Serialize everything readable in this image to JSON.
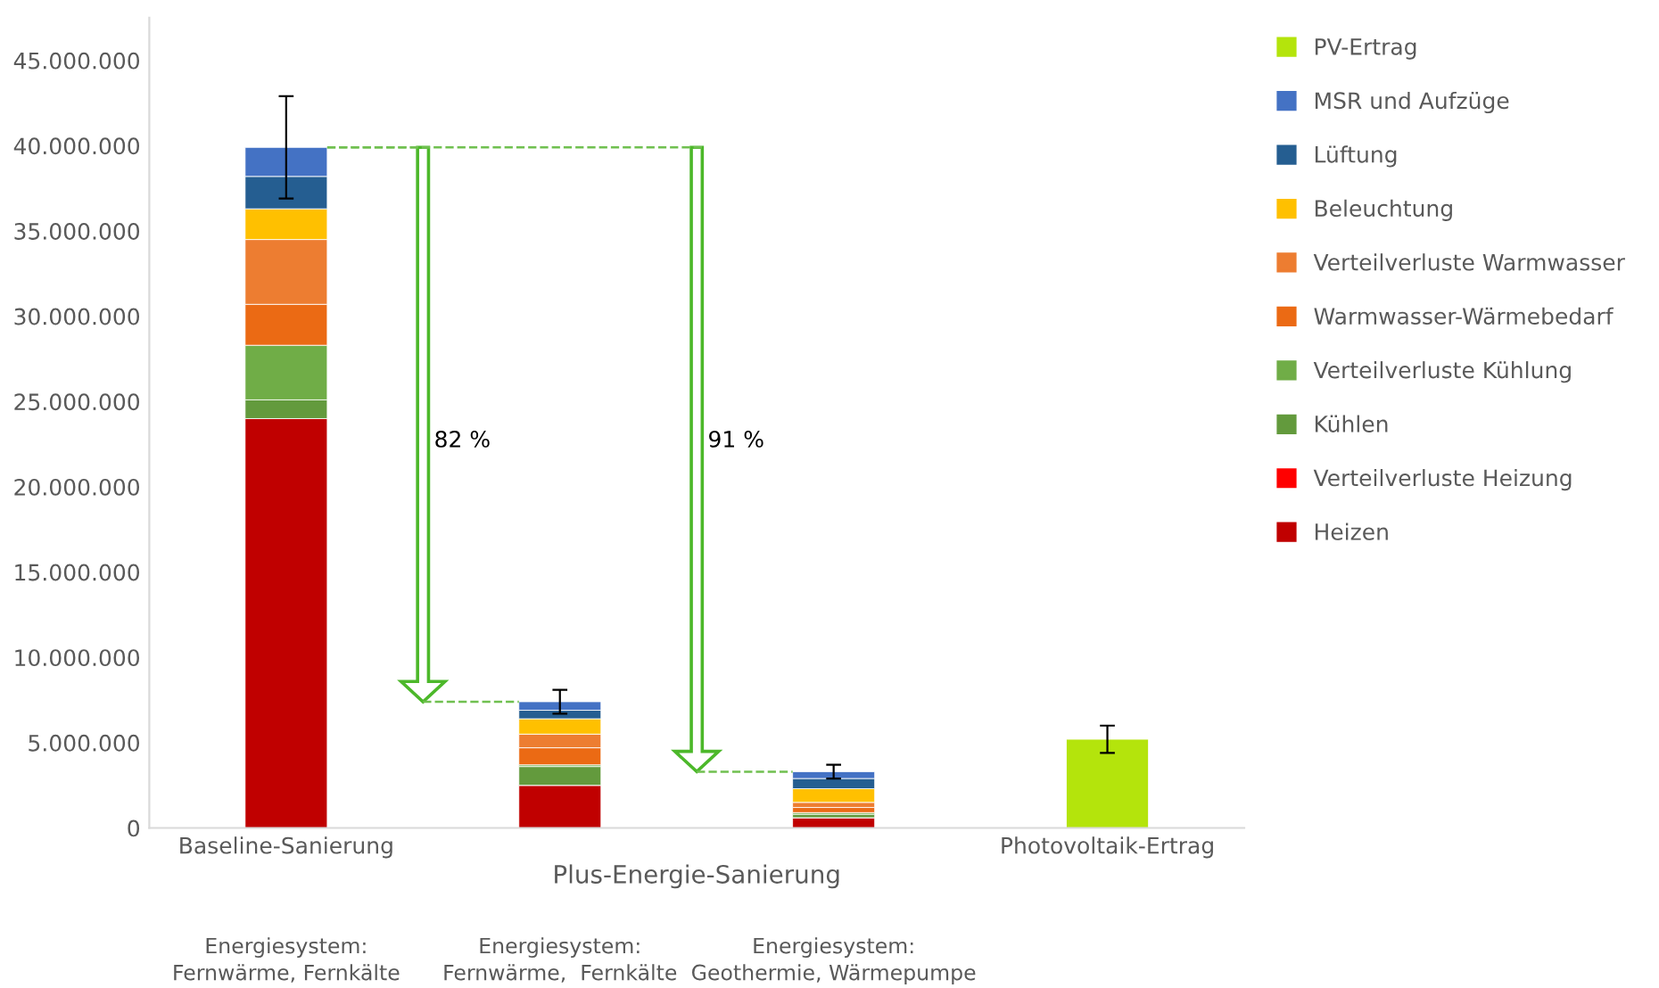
{
  "chart_data": {
    "type": "bar",
    "stacked": true,
    "legend": "right",
    "grid": false,
    "categories": [
      "Baseline-Sanierung",
      null,
      null,
      "Photovoltaik-Ertrag"
    ],
    "ylim": [
      0,
      47500000
    ],
    "yticks": [
      0,
      {
        "value": 5000000,
        "label": "5.000.000"
      },
      {
        "value": 10000000,
        "label": "10.000.000"
      },
      {
        "value": 15000000,
        "label": "15.000.000"
      },
      {
        "value": 20000000,
        "label": "20.000.000"
      },
      {
        "value": 25000000,
        "label": "25.000.000"
      },
      {
        "value": 30000000,
        "label": "30.000.000"
      },
      {
        "value": 35000000,
        "label": "35.000.000"
      },
      {
        "value": 40000000,
        "label": "40.000.000"
      },
      {
        "value": 45000000,
        "label": "45.000.000"
      }
    ],
    "series": [
      {
        "name": "Heizen",
        "color": "#c00000",
        "values": [
          24000000,
          2500000,
          600000,
          null
        ]
      },
      {
        "name": "Verteilverluste Heizung",
        "color": "#ff0000",
        "values": [
          0,
          0,
          0,
          null
        ]
      },
      {
        "name": "Kühlen",
        "color": "#639a3d",
        "values": [
          1100000,
          1100000,
          200000,
          null
        ]
      },
      {
        "name": "Verteilverluste Kühlung",
        "color": "#70ad47",
        "values": [
          3200000,
          100000,
          100000,
          null
        ]
      },
      {
        "name": "Warmwasser-Wärmebedarf",
        "color": "#eb6a14",
        "values": [
          2400000,
          1000000,
          300000,
          null
        ]
      },
      {
        "name": "Verteilverluste Warmwasser",
        "color": "#ed7d31",
        "values": [
          3800000,
          800000,
          300000,
          null
        ]
      },
      {
        "name": "Beleuchtung",
        "color": "#ffc000",
        "values": [
          1800000,
          900000,
          800000,
          null
        ]
      },
      {
        "name": "Lüftung",
        "color": "#255e91",
        "values": [
          1900000,
          500000,
          600000,
          null
        ]
      },
      {
        "name": "MSR und Aufzüge",
        "color": "#4472c4",
        "values": [
          1700000,
          500000,
          400000,
          null
        ],
        "errors": [
          3000000,
          700000,
          400000,
          null
        ]
      },
      {
        "name": "PV-Ertrag",
        "color": "#b4e40c",
        "values": [
          null,
          null,
          null,
          5200000
        ],
        "errors": [
          null,
          null,
          null,
          800000
        ]
      }
    ],
    "annotations": [
      "82 %",
      "91 %",
      "Plus-Energie-Sanierung",
      "Energiesystem:\nFernwärme, Fernkälte",
      "Energiesystem:\nFernwärme,  Fernkälte",
      "Energiesystem:\nGeothermie, Wärmepumpe"
    ]
  }
}
